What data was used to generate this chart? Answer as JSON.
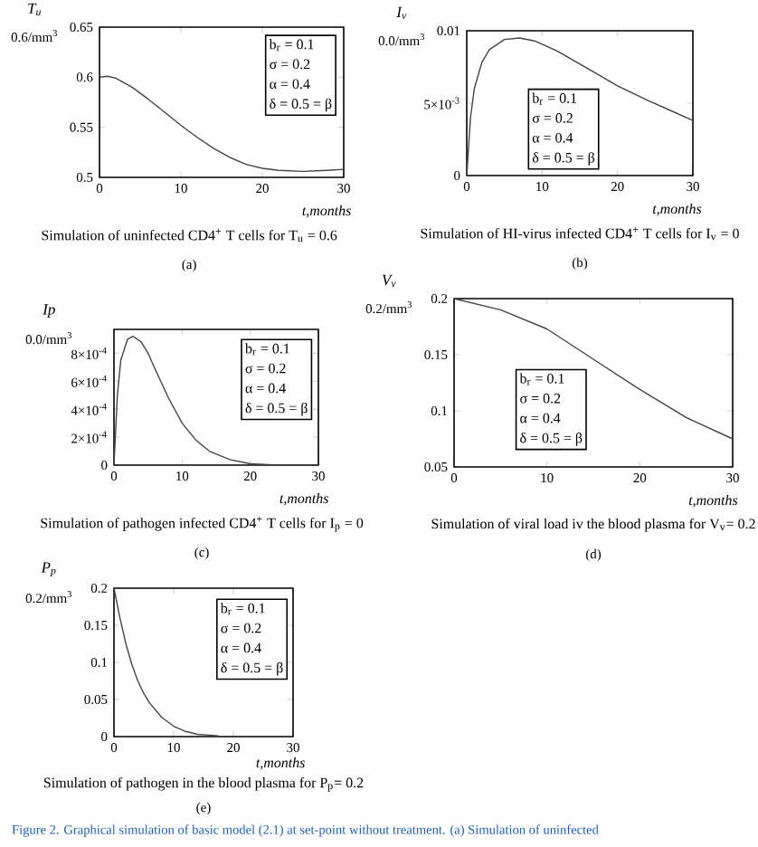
{
  "chart_data": [
    {
      "type": "line",
      "title": "Simulation of uninfected CD4$^{+}$ T cells for T$_{u}$ = 0.6",
      "ylabel": "T$_{u}$",
      "xlabel": "t,months",
      "color": "#444444",
      "xlim": [
        0,
        30
      ],
      "ylim": [
        0.5,
        0.65
      ],
      "xticks": [
        0,
        10,
        20,
        30
      ],
      "yticks": [
        0.5,
        0.55,
        0.6,
        0.65
      ],
      "annotations": [
        "(a)",
        "0.6/mm$^{3}$",
        "b$_{r}$ = 0.1",
        "σ = 0.2",
        "α = 0.4",
        "δ = 0.5 = β"
      ],
      "x": [
        0,
        1,
        2,
        4,
        6,
        8,
        10,
        12,
        14,
        16,
        18,
        20,
        22,
        25,
        28,
        30
      ],
      "values": [
        0.6,
        0.601,
        0.599,
        0.59,
        0.578,
        0.565,
        0.552,
        0.54,
        0.529,
        0.52,
        0.513,
        0.509,
        0.507,
        0.506,
        0.507,
        0.508
      ]
    },
    {
      "type": "line",
      "title": "Simulation of HI-virus infected CD4$^{+}$ T cells for I$_{v}$ = 0",
      "ylabel": "I$_{v}$",
      "xlabel": "t,months",
      "color": "#444444",
      "xlim": [
        0,
        30
      ],
      "ylim": [
        0,
        0.01
      ],
      "xticks": [
        0,
        10,
        20,
        30
      ],
      "yticks": [
        0,
        {
          "value": 0.005,
          "label": "5×10$^{-3}$"
        },
        0.01
      ],
      "annotations": [
        "(b)",
        "0.0/mm$^{3}$",
        "b$_{r}$ = 0.1",
        "σ = 0.2",
        "α = 0.4",
        "δ = 0.5 = β"
      ],
      "x": [
        0,
        0.5,
        1,
        2,
        3,
        5,
        7,
        9,
        12,
        15,
        18,
        20,
        24,
        27,
        30
      ],
      "values": [
        0,
        0.004,
        0.006,
        0.0078,
        0.0087,
        0.0094,
        0.0095,
        0.0093,
        0.0086,
        0.0077,
        0.0068,
        0.0062,
        0.0052,
        0.0045,
        0.0038
      ]
    },
    {
      "type": "line",
      "title": "Simulation of pathogen infected CD4$^{+}$ T cells for I$_{p}$ = 0",
      "ylabel": "Ip",
      "xlabel": "t,months",
      "color": "#444444",
      "xlim": [
        0,
        30
      ],
      "ylim": [
        0,
        0.00097
      ],
      "xticks": [
        0,
        10,
        20,
        30
      ],
      "yticks": [
        0,
        {
          "value": 0.0002,
          "label": "2×10$^{-4}$"
        },
        {
          "value": 0.0004,
          "label": "4×10$^{-4}$"
        },
        {
          "value": 0.0006,
          "label": "6×10$^{-4}$"
        },
        {
          "value": 0.0008,
          "label": "8×10$^{-4}$"
        }
      ],
      "annotations": [
        "(c)",
        "0.0/mm$^{3}$",
        "b$_{r}$ = 0.1",
        "σ = 0.2",
        "α = 0.4",
        "δ = 0.5 = β"
      ],
      "x": [
        0,
        0.5,
        1,
        2,
        2.8,
        4,
        5,
        6,
        8,
        10,
        12,
        14,
        17,
        20,
        24
      ],
      "values": [
        0,
        0.0005,
        0.00075,
        0.0009,
        0.00092,
        0.00088,
        0.0008,
        0.00069,
        0.00048,
        0.0003,
        0.00018,
        0.0001,
        4e-05,
        1e-05,
        0
      ]
    },
    {
      "type": "line",
      "title": "Simulation of viral load iv the blood plasma for V$_{v}$= 0.2",
      "ylabel": "V$_{v}$",
      "xlabel": "t,months",
      "color": "#444444",
      "xlim": [
        0,
        30
      ],
      "ylim": [
        0.05,
        0.2
      ],
      "xticks": [
        0,
        10,
        20,
        30
      ],
      "yticks": [
        0.05,
        0.1,
        0.15,
        0.2
      ],
      "annotations": [
        "(d)",
        "0.2/mm$^{3}$",
        "b$_{r}$ = 0.1",
        "σ = 0.2",
        "α = 0.4",
        "δ = 0.5 = β"
      ],
      "x": [
        0,
        5,
        10,
        15,
        20,
        25,
        30
      ],
      "values": [
        0.2,
        0.19,
        0.173,
        0.146,
        0.119,
        0.094,
        0.075
      ]
    },
    {
      "type": "line",
      "title": "Simulation of pathogen in the blood plasma for P$_{p}$= 0.2",
      "ylabel": "P$_{p}$",
      "xlabel": "t,months",
      "color": "#444444",
      "xlim": [
        0,
        30
      ],
      "ylim": [
        0,
        0.2
      ],
      "xticks": [
        0,
        10,
        20,
        30
      ],
      "yticks": [
        0,
        0.05,
        0.1,
        0.15,
        0.2
      ],
      "annotations": [
        "(e)",
        "0.2/mm$^{3}$",
        "b$_{r}$ = 0.1",
        "σ = 0.2",
        "α = 0.4",
        "δ = 0.5 = β",
        "Figure 2. Graphical simulation of basic model (2.1) at set-point without treatment. (a) Simulation of uninfected"
      ],
      "x": [
        0,
        1,
        2,
        3,
        4,
        5,
        6,
        8,
        10,
        12,
        14,
        16,
        17.5
      ],
      "values": [
        0.2,
        0.16,
        0.125,
        0.097,
        0.075,
        0.058,
        0.045,
        0.026,
        0.014,
        0.007,
        0.003,
        0.002,
        0.001
      ]
    }
  ]
}
